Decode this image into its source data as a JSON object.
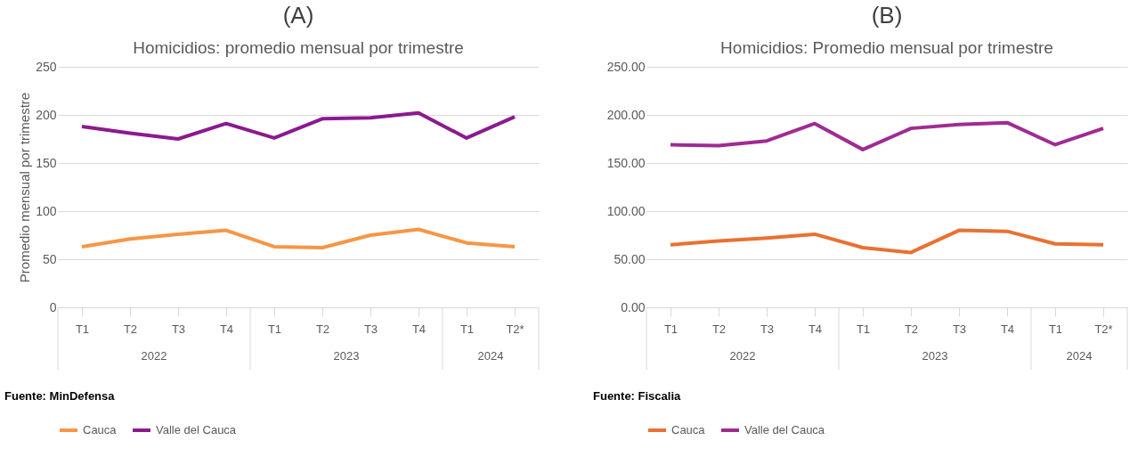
{
  "chart_data": [
    {
      "type": "line",
      "title": "(A)",
      "subtitle": "Homicidios: promedio mensual por trimestre",
      "ylabel": "Promedio mensual por trimestre",
      "categories": [
        "T1",
        "T2",
        "T3",
        "T4",
        "T1",
        "T2",
        "T3",
        "T4",
        "T1",
        "T2*"
      ],
      "series": [
        {
          "name": "Cauca",
          "color": "#f79646",
          "values": [
            63,
            71,
            76,
            80,
            63,
            62,
            75,
            81,
            67,
            63
          ]
        },
        {
          "name": "Valle del Cauca",
          "color": "#8b1a8f",
          "values": [
            188,
            181,
            175,
            191,
            176,
            196,
            197,
            202,
            176,
            198
          ]
        }
      ],
      "ylim": [
        0,
        250
      ],
      "yticks": [
        0,
        50,
        100,
        150,
        200,
        250
      ],
      "grid": "y",
      "legend": "bottom",
      "line_style": "solid",
      "annotations": [
        "2022",
        "2023",
        "2024",
        "Fuente: MinDefensa"
      ]
    },
    {
      "type": "line",
      "title": "(B)",
      "subtitle": "Homicidios: Promedio mensual por trimestre",
      "categories": [
        "T1",
        "T2",
        "T3",
        "T4",
        "T1",
        "T2",
        "T3",
        "T4",
        "T1",
        "T2*"
      ],
      "series": [
        {
          "name": "Cauca",
          "color": "#e97132",
          "values": [
            65,
            69,
            72,
            76,
            62,
            57,
            80,
            79,
            66,
            65
          ]
        },
        {
          "name": "Valle del Cauca",
          "color": "#a02b93",
          "values": [
            169,
            168,
            173,
            191,
            164,
            186,
            190,
            192,
            169,
            186
          ]
        }
      ],
      "ylim": [
        0,
        250
      ],
      "yticks": [
        {
          "value": 0,
          "label": "0.00"
        },
        {
          "value": 50,
          "label": "50.00"
        },
        {
          "value": 100,
          "label": "100.00"
        },
        {
          "value": 150,
          "label": "150.00"
        },
        {
          "value": 200,
          "label": "200.00"
        },
        {
          "value": 250,
          "label": "250.00"
        }
      ],
      "grid": "y",
      "legend": "bottom",
      "line_style": "solid",
      "annotations": [
        "2022",
        "2023",
        "2024",
        "Fuente: Fiscalia"
      ]
    }
  ]
}
